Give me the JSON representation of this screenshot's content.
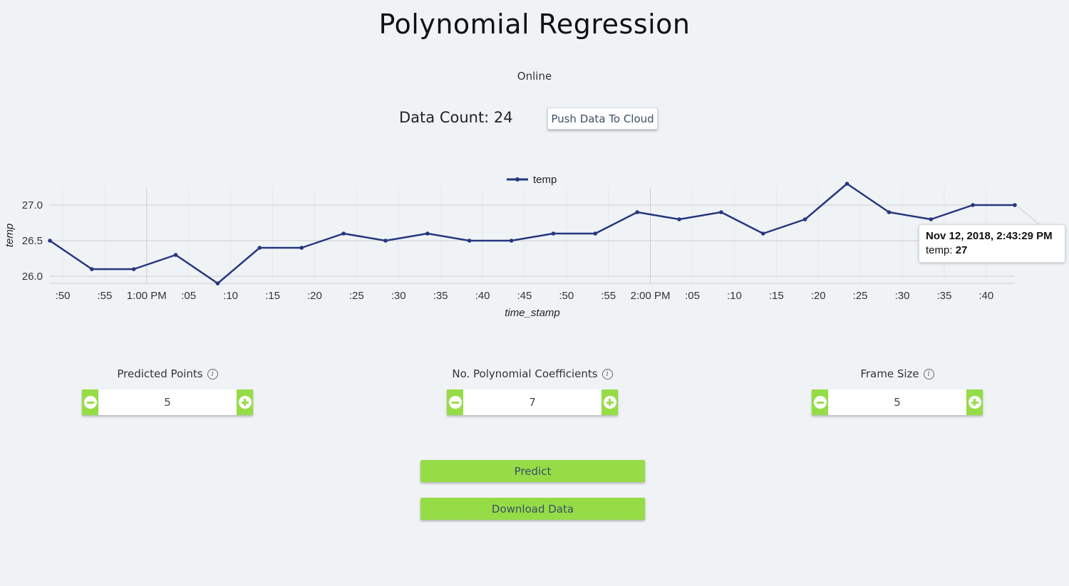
{
  "header": {
    "title": "Polynomial Regression",
    "status": "Online"
  },
  "data_count": {
    "text": "Data Count: 24"
  },
  "push_button": {
    "label": "Push Data To Cloud"
  },
  "chart_data": {
    "type": "line",
    "legend": [
      "temp"
    ],
    "legend_position": "top-center",
    "xlabel": "time_stamp",
    "ylabel": "temp",
    "y_ticks": [
      "26.0",
      "26.5",
      "27.0"
    ],
    "ylim": [
      25.9,
      27.25
    ],
    "x_ticks": [
      ":50",
      ":55",
      "1:00 PM",
      ":05",
      ":10",
      ":15",
      ":20",
      ":25",
      ":30",
      ":35",
      ":40",
      ":45",
      ":50",
      ":55",
      "2:00 PM",
      ":05",
      ":10",
      ":15",
      ":20",
      ":25",
      ":30",
      ":35",
      ":40"
    ],
    "series": [
      {
        "name": "temp",
        "color": "#26377f",
        "values": [
          26.5,
          26.1,
          26.1,
          26.3,
          25.9,
          26.4,
          26.4,
          26.6,
          26.5,
          26.6,
          26.5,
          26.5,
          26.6,
          26.6,
          26.9,
          26.8,
          26.9,
          26.6,
          26.8,
          27.3,
          26.9,
          26.8,
          27.0,
          27.0
        ]
      }
    ],
    "grid": true
  },
  "tooltip": {
    "date": "Nov 12, 2018, 2:43:29 PM",
    "series": "temp:",
    "value": "27"
  },
  "controls": [
    {
      "label": "Predicted Points",
      "value": "5"
    },
    {
      "label": "No. Polynomial Coefficients",
      "value": "7"
    },
    {
      "label": "Frame Size",
      "value": "5"
    }
  ],
  "actions": {
    "predict_label": "Predict",
    "download_label": "Download Data"
  },
  "colors": {
    "accent_green": "#96dc47",
    "line": "#26377f",
    "background": "#f0f3f6"
  }
}
